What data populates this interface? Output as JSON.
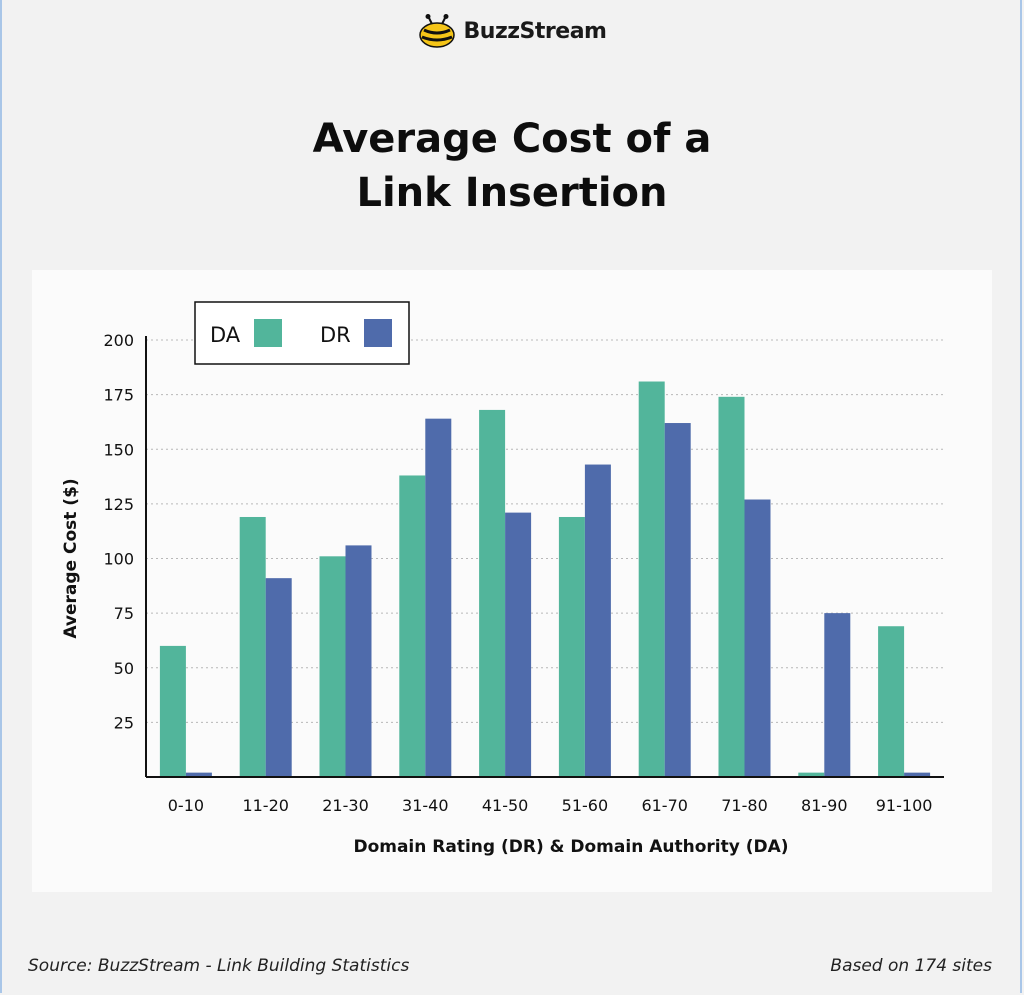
{
  "brand": {
    "name": "BuzzStream"
  },
  "title": {
    "line1": "Average Cost of a",
    "line2": "Link Insertion"
  },
  "footer": {
    "source": "Source: BuzzStream - Link Building Statistics",
    "sites": "Based on 174 sites"
  },
  "chart_data": {
    "type": "bar",
    "categories": [
      "0-10",
      "11-20",
      "21-30",
      "31-40",
      "41-50",
      "51-60",
      "61-70",
      "71-80",
      "81-90",
      "91-100"
    ],
    "series": [
      {
        "name": "DA",
        "color": "#52b59b",
        "values": [
          60,
          119,
          101,
          138,
          168,
          119,
          181,
          174,
          2,
          69
        ]
      },
      {
        "name": "DR",
        "color": "#4f6bab",
        "values": [
          2,
          91,
          106,
          164,
          121,
          143,
          162,
          127,
          75,
          2
        ]
      }
    ],
    "xlabel": "Domain Rating (DR) & Domain Authority (DA)",
    "ylabel": "Average Cost ($)",
    "ylim": [
      0,
      200
    ],
    "yticks": [
      25,
      50,
      75,
      100,
      125,
      150,
      175,
      200
    ],
    "grid": true,
    "legend_position": "top-left"
  }
}
